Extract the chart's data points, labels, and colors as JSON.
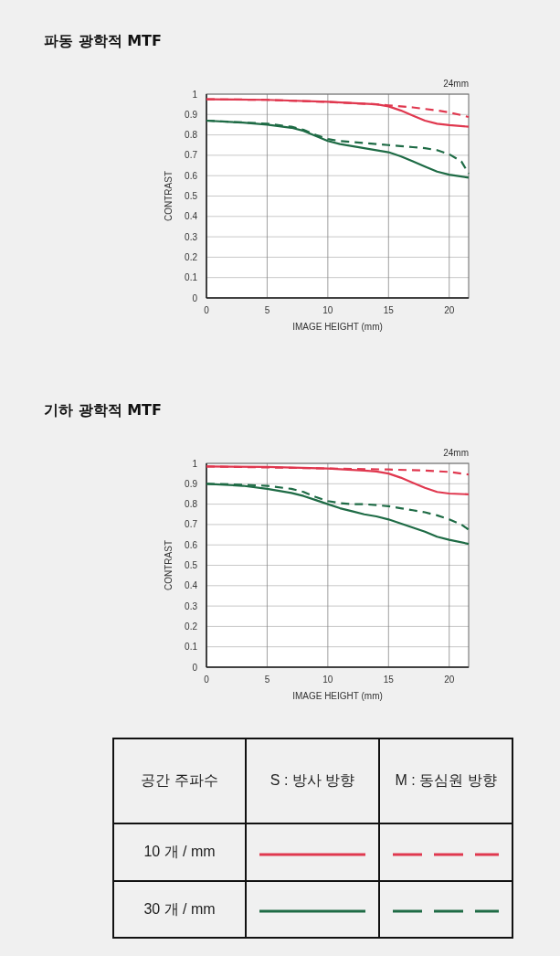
{
  "chart_data": [
    {
      "type": "line",
      "title": "파동 광학적 MTF",
      "xlabel": "IMAGE HEIGHT (mm)",
      "ylabel": "CONTRAST",
      "annotations": [
        "24mm"
      ],
      "xlim": [
        0,
        21.6
      ],
      "xticks": [
        0,
        5,
        10,
        15,
        20
      ],
      "ylim": [
        0,
        1
      ],
      "yticks": [
        0,
        0.1,
        0.2,
        0.3,
        0.4,
        0.5,
        0.6,
        0.7,
        0.8,
        0.9,
        1
      ],
      "grid": true,
      "series": [
        {
          "color": "#e0384f",
          "line_style": "solid",
          "x": [
            0,
            5,
            10,
            14,
            15,
            16,
            17,
            18,
            19,
            20,
            21.6
          ],
          "values": [
            0.975,
            0.972,
            0.962,
            0.95,
            0.94,
            0.92,
            0.895,
            0.87,
            0.855,
            0.848,
            0.84
          ]
        },
        {
          "color": "#e0384f",
          "line_style": "dashed",
          "x": [
            0,
            5,
            10,
            14,
            15,
            17,
            19,
            20,
            21,
            21.6
          ],
          "values": [
            0.975,
            0.972,
            0.962,
            0.95,
            0.945,
            0.935,
            0.92,
            0.91,
            0.897,
            0.888
          ]
        },
        {
          "color": "#1e6b45",
          "line_style": "solid",
          "x": [
            0,
            3,
            5,
            7,
            8,
            9,
            10,
            11,
            12,
            13,
            14,
            15,
            16,
            17,
            18,
            19,
            20,
            21.6
          ],
          "values": [
            0.87,
            0.86,
            0.85,
            0.835,
            0.82,
            0.795,
            0.77,
            0.755,
            0.745,
            0.735,
            0.725,
            0.715,
            0.695,
            0.67,
            0.645,
            0.62,
            0.605,
            0.59
          ]
        },
        {
          "color": "#1e6b45",
          "line_style": "dashed",
          "x": [
            0,
            5,
            7,
            8,
            9,
            10,
            11,
            12,
            13,
            14,
            15,
            16,
            17,
            18,
            19,
            20,
            21,
            21.6
          ],
          "values": [
            0.87,
            0.855,
            0.84,
            0.825,
            0.8,
            0.78,
            0.77,
            0.765,
            0.76,
            0.755,
            0.75,
            0.745,
            0.74,
            0.735,
            0.725,
            0.705,
            0.67,
            0.61
          ]
        }
      ]
    },
    {
      "type": "line",
      "title": "기하 광학적 MTF",
      "xlabel": "IMAGE HEIGHT (mm)",
      "ylabel": "CONTRAST",
      "annotations": [
        "24mm"
      ],
      "xlim": [
        0,
        21.6
      ],
      "xticks": [
        0,
        5,
        10,
        15,
        20
      ],
      "ylim": [
        0,
        1
      ],
      "yticks": [
        0,
        0.1,
        0.2,
        0.3,
        0.4,
        0.5,
        0.6,
        0.7,
        0.8,
        0.9,
        1
      ],
      "grid": true,
      "series": [
        {
          "color": "#e0384f",
          "line_style": "solid",
          "x": [
            0,
            5,
            10,
            13,
            14,
            15,
            16,
            17,
            18,
            19,
            20,
            21.6
          ],
          "values": [
            0.985,
            0.983,
            0.975,
            0.965,
            0.96,
            0.95,
            0.93,
            0.905,
            0.88,
            0.86,
            0.852,
            0.848
          ]
        },
        {
          "color": "#e0384f",
          "line_style": "dashed",
          "x": [
            0,
            10,
            15,
            18,
            20,
            21.6
          ],
          "values": [
            0.985,
            0.975,
            0.97,
            0.965,
            0.958,
            0.945
          ]
        },
        {
          "color": "#1e6b45",
          "line_style": "solid",
          "x": [
            0,
            3,
            5,
            7,
            8,
            9,
            10,
            11,
            12,
            13,
            14,
            15,
            16,
            17,
            18,
            19,
            20,
            21.6
          ],
          "values": [
            0.9,
            0.89,
            0.875,
            0.855,
            0.84,
            0.82,
            0.8,
            0.78,
            0.765,
            0.75,
            0.74,
            0.725,
            0.705,
            0.685,
            0.665,
            0.64,
            0.625,
            0.605
          ]
        },
        {
          "color": "#1e6b45",
          "line_style": "dashed",
          "x": [
            0,
            3,
            5,
            7,
            8,
            9,
            10,
            11,
            12,
            13,
            14,
            15,
            16,
            17,
            18,
            19,
            20,
            21,
            21.6
          ],
          "values": [
            0.9,
            0.895,
            0.89,
            0.875,
            0.86,
            0.835,
            0.815,
            0.805,
            0.8,
            0.8,
            0.795,
            0.79,
            0.78,
            0.77,
            0.76,
            0.745,
            0.725,
            0.7,
            0.675
          ]
        }
      ]
    },
    {
      "type": "other",
      "annotations": [
        "공간 주파수",
        "S : 방사 방향",
        "M : 동심원 방향",
        "10 개 / mm",
        "30 개 / mm"
      ]
    }
  ]
}
